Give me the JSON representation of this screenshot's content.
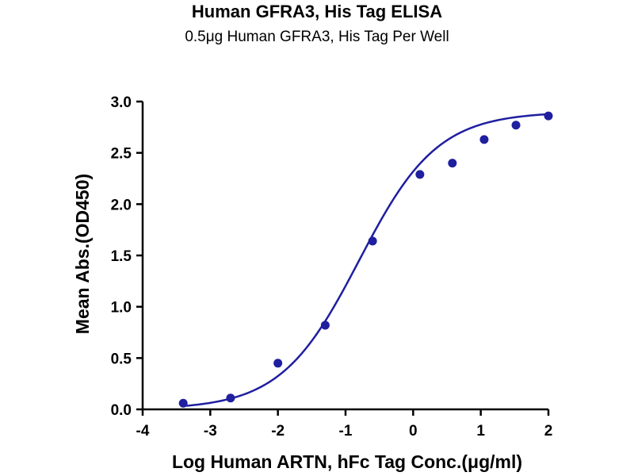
{
  "chart_data": {
    "type": "scatter",
    "title": "Human GFRA3, His Tag ELISA",
    "subtitle": "0.5μg Human GFRA3, His Tag Per Well",
    "xlabel": "Log Human ARTN, hFc Tag Conc.(μg/ml)",
    "ylabel": "Mean Abs.(OD450)",
    "xlim": [
      -4,
      2
    ],
    "ylim": [
      0,
      3.0
    ],
    "xticks": [
      -4,
      -3,
      -2,
      -1,
      0,
      1,
      2
    ],
    "yticks": [
      0.0,
      0.5,
      1.0,
      1.5,
      2.0,
      2.5,
      3.0
    ],
    "xtick_labels": [
      "-4",
      "-3",
      "-2",
      "-1",
      "0",
      "1",
      "2"
    ],
    "ytick_labels": [
      "0.0",
      "0.5",
      "1.0",
      "1.5",
      "2.0",
      "2.5",
      "3.0"
    ],
    "grid": false,
    "color": "#1f1fa0",
    "series": [
      {
        "x": [
          -3.4,
          -2.7,
          -2.0,
          -1.3,
          -0.6,
          0.1,
          0.58,
          1.05,
          1.52,
          2.0
        ],
        "y": [
          0.06,
          0.11,
          0.45,
          0.82,
          1.64,
          2.29,
          2.4,
          2.63,
          2.77,
          2.86
        ]
      }
    ],
    "fit_curve": {
      "type": "4PL",
      "bottom": 0.0,
      "top": 2.9,
      "log_ec50": -0.8,
      "hill_slope": 0.75
    }
  }
}
